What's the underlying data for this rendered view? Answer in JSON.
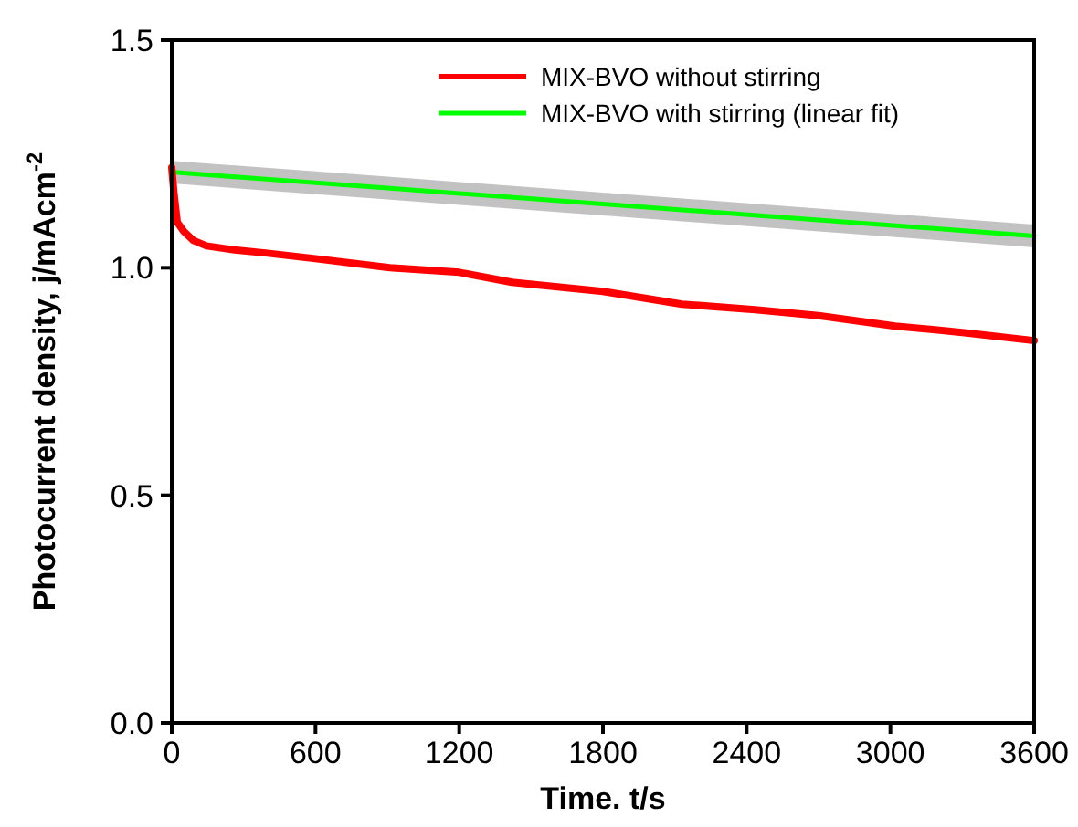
{
  "chart_data": {
    "type": "line",
    "xlabel": "Time. t/s",
    "ylabel": "Photocurrent density, j/mAcm$^{-2}$",
    "xlim": [
      0,
      3600
    ],
    "ylim": [
      0,
      1.5
    ],
    "xticks": [
      0,
      600,
      1200,
      1800,
      2400,
      3000,
      3600
    ],
    "yticks": [
      {
        "value": 0,
        "label": "0.0"
      },
      0.5,
      {
        "value": 1,
        "label": "1.0"
      },
      1.5
    ],
    "legend": "top right",
    "grid": false,
    "series": [
      {
        "name": "MIX-BVO without stirring",
        "color": "#ff0000",
        "x": [
          0,
          10,
          23,
          50,
          90,
          145,
          250,
          400,
          600,
          910,
          1200,
          1420,
          1800,
          2130,
          2435,
          2700,
          3020,
          3300,
          3600
        ],
        "values": [
          1.22,
          1.16,
          1.1,
          1.08,
          1.06,
          1.048,
          1.04,
          1.032,
          1.02,
          1.0,
          0.99,
          0.968,
          0.948,
          0.92,
          0.908,
          0.895,
          0.872,
          0.858,
          0.84
        ]
      },
      {
        "name": "MIX-BVO with stirring (linear fit)",
        "color": "#00ff00",
        "x": [
          0,
          900,
          1800,
          2700,
          3600
        ],
        "values": [
          1.21,
          1.175,
          1.14,
          1.105,
          1.07
        ],
        "lower": [
          1.185,
          1.15,
          1.115,
          1.08,
          1.045
        ],
        "upper": [
          1.235,
          1.2,
          1.165,
          1.13,
          1.095
        ]
      }
    ]
  }
}
